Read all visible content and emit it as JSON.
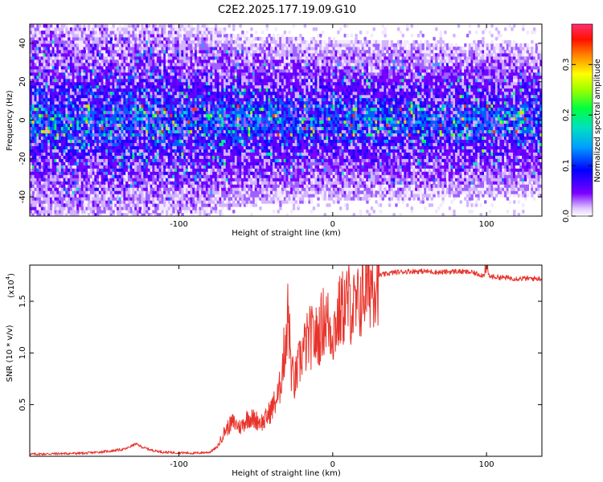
{
  "title": "C2E2.2025.177.19.09.G10",
  "chart_data": [
    {
      "type": "heatmap",
      "xlabel": "Height of straight line (km)",
      "ylabel": "Frequency (Hz)",
      "xlim": [
        -197,
        136
      ],
      "ylim": [
        -50,
        50
      ],
      "x_ticks": [
        -100,
        0,
        100
      ],
      "y_ticks": [
        -40,
        -20,
        0,
        20,
        40
      ],
      "colorbar": {
        "label": "Normalized spectral amplitude",
        "range": [
          0.0,
          0.38
        ],
        "ticks": [
          0.0,
          0.1,
          0.2,
          0.3
        ],
        "colors": [
          "#ffffff",
          "#7a00ff",
          "#0000ff",
          "#00c8ff",
          "#00ff80",
          "#80ff00",
          "#ffff00",
          "#ff8000",
          "#ff0000",
          "#ff2f6e"
        ]
      },
      "description_values": {
        "band_halfwidth_hz": [
          [
            -197,
            48
          ],
          [
            -150,
            48
          ],
          [
            -110,
            47
          ],
          [
            -80,
            44
          ],
          [
            -60,
            40
          ],
          [
            -20,
            38
          ],
          [
            40,
            37
          ],
          [
            100,
            36
          ],
          [
            136,
            35
          ]
        ],
        "peak_amplitude": 0.38
      }
    },
    {
      "type": "line",
      "xlabel": "Height of straight line (km)",
      "ylabel": "SNR (10 * v/v)",
      "y_scale_label": "(x10",
      "y_scale_exp": "4",
      "xlim": [
        -197,
        136
      ],
      "ylim": [
        0,
        18500
      ],
      "x_ticks": [
        -100,
        0,
        100
      ],
      "y_ticks": [
        5000,
        10000,
        15000
      ],
      "y_tick_labels": [
        "0.5",
        "1.0",
        "1.5"
      ],
      "series": [
        {
          "color": "#e8332b",
          "x": [
            -197,
            -180,
            -160,
            -145,
            -135,
            -128,
            -124,
            -118,
            -110,
            -100,
            -90,
            -80,
            -75,
            -70,
            -65,
            -60,
            -55,
            -50,
            -45,
            -40,
            -35,
            -32,
            -29,
            -27,
            -25,
            -20,
            -15,
            -10,
            -5,
            0,
            5,
            10,
            15,
            20,
            25,
            30,
            40,
            50,
            60,
            70,
            80,
            90,
            98,
            100,
            102,
            110,
            120,
            136
          ],
          "y": [
            200,
            250,
            300,
            500,
            700,
            1200,
            900,
            600,
            400,
            350,
            300,
            400,
            900,
            2500,
            3300,
            2800,
            3800,
            3500,
            3300,
            4500,
            6000,
            9500,
            14000,
            8500,
            7000,
            10000,
            11500,
            11500,
            13500,
            12000,
            14000,
            15000,
            14000,
            16000,
            17000,
            17500,
            17800,
            17900,
            17900,
            17800,
            17900,
            17800,
            17500,
            18000,
            17400,
            17300,
            17200,
            17200
          ]
        }
      ]
    }
  ]
}
